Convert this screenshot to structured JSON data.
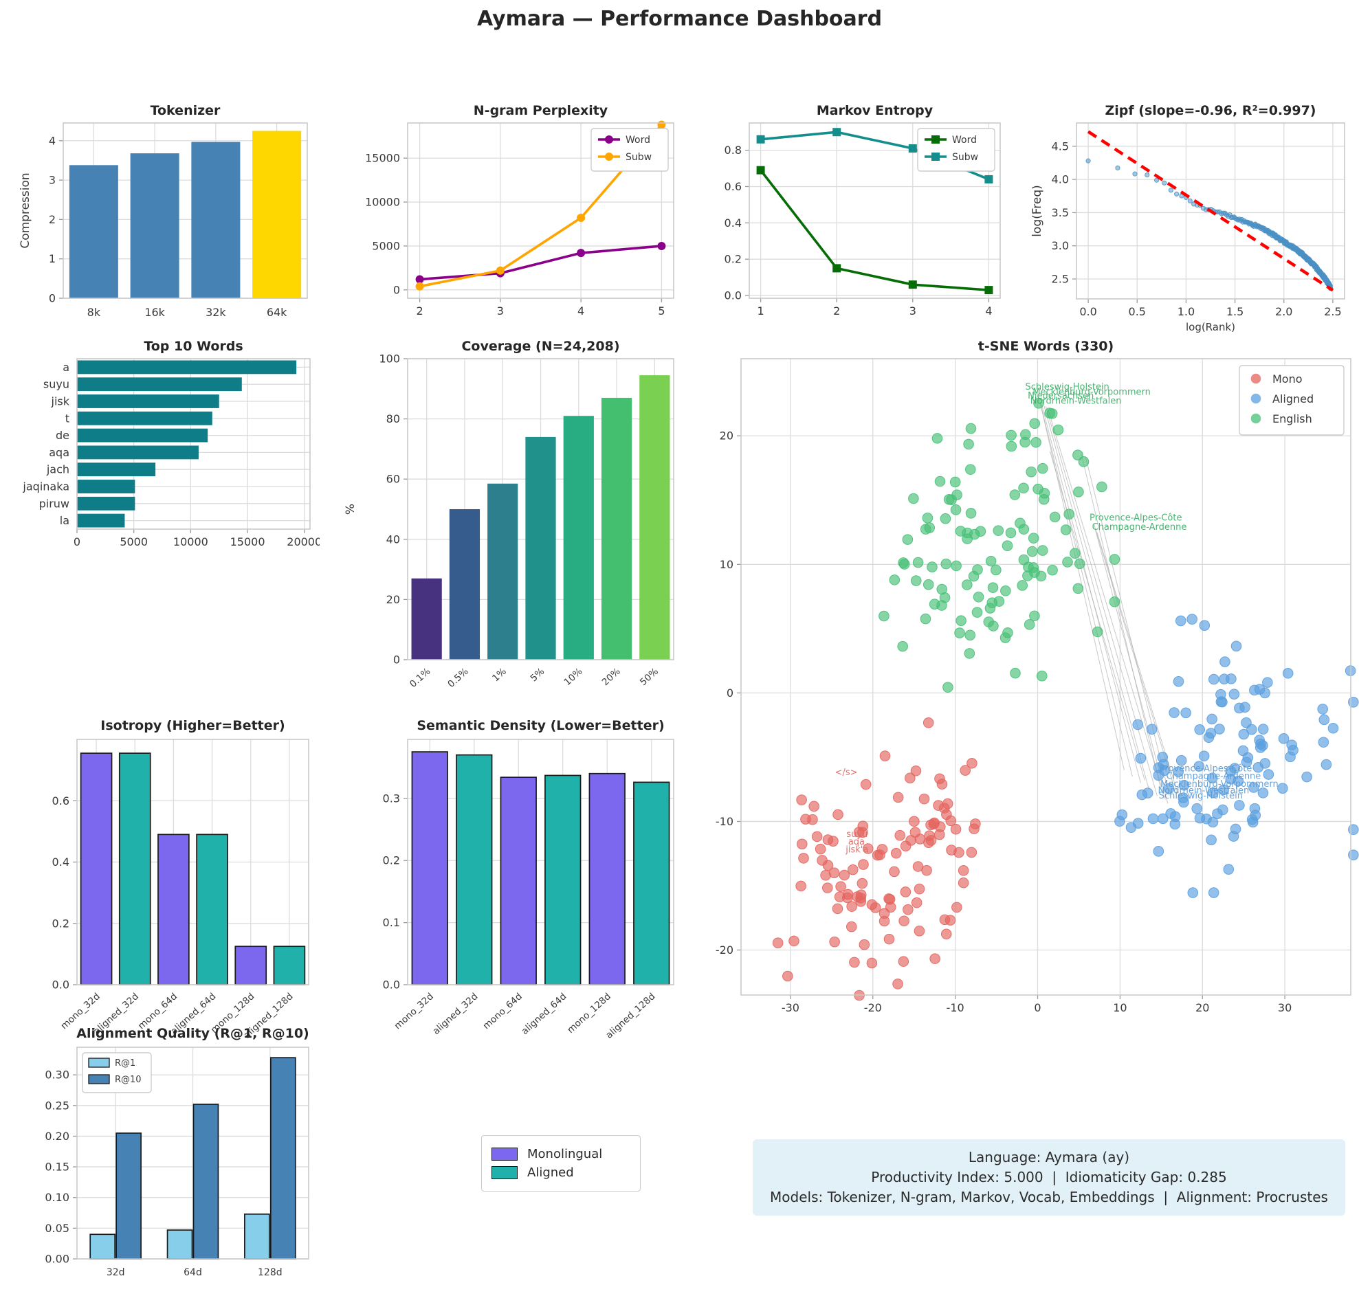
{
  "page_title": "Aymara — Performance Dashboard",
  "info_box": {
    "line1": "Language: Aymara (ay)",
    "line2": "Productivity Index: 5.000  |  Idiomaticity Gap: 0.285",
    "line3": "Models: Tokenizer, N-gram, Markov, Vocab, Embeddings  |  Alignment: Procrustes"
  },
  "shared_legend": {
    "items": [
      {
        "label": "Monolingual",
        "color": "#7B68EE"
      },
      {
        "label": "Aligned",
        "color": "#20B2AA"
      }
    ]
  },
  "chart_data": [
    {
      "id": "tokenizer",
      "type": "bar",
      "title": "Tokenizer",
      "ylabel": "Compression",
      "categories": [
        "8k",
        "16k",
        "32k",
        "64k"
      ],
      "values": [
        3.38,
        3.68,
        3.97,
        4.25
      ],
      "bar_colors": [
        "#4682B4",
        "#4682B4",
        "#4682B4",
        "#FFD700"
      ],
      "ylim": [
        0,
        4.45
      ],
      "yticks": [
        0,
        1,
        2,
        3,
        4
      ],
      "ydec": 0
    },
    {
      "id": "ngram",
      "type": "line",
      "title": "N-gram Perplexity",
      "x": [
        2,
        3,
        4,
        5
      ],
      "xticks": [
        2,
        3,
        4,
        5
      ],
      "xlim": [
        1.85,
        5.15
      ],
      "ylim": [
        -950,
        19000
      ],
      "yticks": [
        0,
        5000,
        10000,
        15000
      ],
      "ydec": 0,
      "series": [
        {
          "name": "Word",
          "color": "#8B008B",
          "marker": "circle",
          "values": [
            1200,
            1900,
            4200,
            5000
          ]
        },
        {
          "name": "Subw",
          "color": "#FFA500",
          "marker": "circle",
          "values": [
            400,
            2200,
            8200,
            18800
          ]
        }
      ],
      "legend_pos": "top-right"
    },
    {
      "id": "markov",
      "type": "line",
      "title": "Markov Entropy",
      "x": [
        1,
        2,
        3,
        4
      ],
      "xticks": [
        1,
        2,
        3,
        4
      ],
      "xlim": [
        0.85,
        4.15
      ],
      "ylim": [
        -0.015,
        0.95
      ],
      "yticks": [
        0.0,
        0.2,
        0.4,
        0.6,
        0.8
      ],
      "ydec": 1,
      "series": [
        {
          "name": "Word",
          "color": "#066d06",
          "marker": "square",
          "values": [
            0.69,
            0.15,
            0.06,
            0.03
          ]
        },
        {
          "name": "Subw",
          "color": "#148d8d",
          "marker": "square",
          "values": [
            0.86,
            0.9,
            0.81,
            0.64
          ]
        }
      ],
      "legend_pos": "top-right"
    },
    {
      "id": "zipf",
      "type": "zipf",
      "title": "Zipf (slope=-0.96, R²=0.997)",
      "xlabel": "log(Rank)",
      "ylabel": "log(Freq)",
      "xlim": [
        -0.12,
        2.62
      ],
      "ylim": [
        2.2,
        4.85
      ],
      "xticks": [
        0.0,
        0.5,
        1.0,
        1.5,
        2.0,
        2.5
      ],
      "yticks": [
        2.5,
        3.0,
        3.5,
        4.0,
        4.5
      ],
      "slope": -0.96,
      "r_squared": 0.997,
      "n_points": 300,
      "fit_line": {
        "x0": 0.0,
        "y0": 4.72,
        "x1": 2.5,
        "y1": 2.33,
        "color": "#ff0000"
      },
      "point_color": "#4a90c4",
      "anchors": [
        [
          0,
          4.29
        ],
        [
          0.3,
          4.16
        ],
        [
          0.48,
          4.08
        ],
        [
          0.6,
          4.06
        ],
        [
          0.7,
          4.01
        ],
        [
          0.78,
          3.93
        ],
        [
          0.9,
          3.8
        ],
        [
          1.0,
          3.72
        ],
        [
          1.1,
          3.63
        ],
        [
          1.2,
          3.56
        ],
        [
          1.3,
          3.52
        ],
        [
          1.4,
          3.47
        ],
        [
          1.5,
          3.42
        ],
        [
          1.6,
          3.36
        ],
        [
          1.7,
          3.31
        ],
        [
          1.8,
          3.25
        ],
        [
          1.9,
          3.16
        ],
        [
          2.0,
          3.06
        ],
        [
          2.1,
          2.97
        ],
        [
          2.2,
          2.86
        ],
        [
          2.3,
          2.72
        ],
        [
          2.4,
          2.55
        ],
        [
          2.45,
          2.44
        ],
        [
          2.5,
          2.32
        ]
      ]
    },
    {
      "id": "topwords",
      "type": "barh",
      "title": "Top 10 Words",
      "categories": [
        "a",
        "suyu",
        "jisk",
        "t",
        "de",
        "aqa",
        "jach",
        "jaqinaka",
        "piruw",
        "la"
      ],
      "values": [
        19300,
        14500,
        12500,
        11900,
        11500,
        10700,
        6900,
        5100,
        5100,
        4200
      ],
      "color": "#0e7d87",
      "xlim": [
        0,
        20500
      ],
      "xticks": [
        0,
        5000,
        10000,
        15000,
        20000
      ],
      "xdec": 0
    },
    {
      "id": "coverage",
      "type": "bar",
      "title": "Coverage (N=24,208)",
      "ylabel": "%",
      "categories": [
        "0.1%",
        "0.5%",
        "1%",
        "5%",
        "10%",
        "20%",
        "50%"
      ],
      "values": [
        27,
        50,
        58.5,
        74,
        81,
        87,
        94.5
      ],
      "bar_colors": [
        "#46327e",
        "#365c8d",
        "#2d7f8e",
        "#21918c",
        "#27ad81",
        "#44bf70",
        "#7ad151"
      ],
      "ylim": [
        0,
        100
      ],
      "yticks": [
        0,
        20,
        40,
        60,
        80,
        100
      ],
      "ydec": 0,
      "rotate": true
    },
    {
      "id": "tsne",
      "type": "tsne",
      "title": "t-SNE Words (330)",
      "xlim": [
        -36,
        38
      ],
      "ylim": [
        -23.5,
        26
      ],
      "xticks": [
        -30,
        -20,
        -10,
        0,
        10,
        20,
        30
      ],
      "yticks": [
        -20,
        -10,
        0,
        10,
        20
      ],
      "legend": [
        {
          "label": "Mono",
          "color": "#e4645e"
        },
        {
          "label": "Aligned",
          "color": "#5a9fdf"
        },
        {
          "label": "English",
          "color": "#47c077"
        }
      ],
      "clusters": [
        {
          "name": "Mono",
          "color": "#e4645e",
          "seed": 7,
          "blobs": [
            {
              "n": 78,
              "cx": -21,
              "cy": -14.5,
              "sx": 5.0,
              "sy": 4.0
            },
            {
              "n": 32,
              "cx": -11,
              "cy": -10,
              "sx": 2.6,
              "sy": 3.2
            }
          ]
        },
        {
          "name": "Aligned",
          "color": "#5a9fdf",
          "seed": 13,
          "blobs": [
            {
              "n": 95,
              "cx": 22,
              "cy": -4.5,
              "sx": 6.8,
              "sy": 4.6
            },
            {
              "n": 15,
              "cx": 14,
              "cy": -7.5,
              "sx": 2.2,
              "sy": 1.6
            }
          ]
        },
        {
          "name": "English",
          "color": "#47c077",
          "seed": 42,
          "blobs": [
            {
              "n": 100,
              "cx": -6.5,
              "cy": 11,
              "sx": 6.6,
              "sy": 4.4
            },
            {
              "n": 10,
              "cx": 1,
              "cy": 19.5,
              "sx": 3.4,
              "sy": 2.0
            }
          ]
        }
      ],
      "annotations": [
        {
          "text": "Schleswig-Holstein",
          "x": -1.5,
          "y": 23.6,
          "color": "green"
        },
        {
          "text": "Mecklenburg-Vorpommern",
          "x": -0.6,
          "y": 23.2,
          "color": "green"
        },
        {
          "text": "Niedersachsen",
          "x": -1.2,
          "y": 22.9,
          "color": "green"
        },
        {
          "text": "Nordrhein-Westfalen",
          "x": -0.9,
          "y": 22.5,
          "color": "green"
        },
        {
          "text": "Provence-Alpes-Côte",
          "x": 6.3,
          "y": 13.4,
          "color": "green"
        },
        {
          "text": "Champagne-Ardenne",
          "x": 6.6,
          "y": 12.7,
          "color": "green"
        },
        {
          "text": "Provence-Alpes-Côte",
          "x": 14.8,
          "y": -6.1,
          "color": "blue"
        },
        {
          "text": "Champagne-Ardenne",
          "x": 15.6,
          "y": -6.7,
          "color": "blue"
        },
        {
          "text": "Mecklenburg-Vorpommern",
          "x": 14.9,
          "y": -7.3,
          "color": "blue"
        },
        {
          "text": "Nordrhein-Westfalen",
          "x": 14.6,
          "y": -7.8,
          "color": "blue"
        },
        {
          "text": "Schleswig-Holstein",
          "x": 14.7,
          "y": -8.2,
          "color": "blue"
        },
        {
          "text": "</s>",
          "x": -24.6,
          "y": -6.4,
          "color": "red"
        },
        {
          "text": "suyu",
          "x": -23.2,
          "y": -11.2,
          "color": "red"
        },
        {
          "text": "aqa",
          "x": -23.0,
          "y": -11.8,
          "color": "red"
        },
        {
          "text": "jisk'a",
          "x": -23.3,
          "y": -12.4,
          "color": "red"
        }
      ],
      "connections": [
        [
          0.3,
          22.6,
          10.5,
          -6.0
        ],
        [
          0.3,
          22.6,
          11.5,
          -6.5
        ],
        [
          0.5,
          22.4,
          12.5,
          -7.0
        ],
        [
          0.8,
          22.3,
          13.5,
          -7.5
        ],
        [
          1.0,
          22.3,
          14.5,
          -8.0
        ],
        [
          1.2,
          22.2,
          15.5,
          -8.3
        ],
        [
          1.5,
          18.8,
          13.0,
          -6.8
        ],
        [
          5.3,
          18.6,
          15.0,
          -7.6
        ],
        [
          5.8,
          18.4,
          16.0,
          -8.0
        ],
        [
          6.8,
          13.2,
          16.5,
          -7.2
        ],
        [
          7.0,
          12.7,
          15.8,
          -8.6
        ],
        [
          7.2,
          12.5,
          17.0,
          -7.8
        ]
      ]
    },
    {
      "id": "isotropy",
      "type": "bar",
      "title": "Isotropy (Higher=Better)",
      "categories": [
        "mono_32d",
        "aligned_32d",
        "mono_64d",
        "aligned_64d",
        "mono_128d",
        "aligned_128d"
      ],
      "values": [
        0.755,
        0.755,
        0.49,
        0.49,
        0.125,
        0.125
      ],
      "bar_colors": [
        "#7B68EE",
        "#20B2AA",
        "#7B68EE",
        "#20B2AA",
        "#7B68EE",
        "#20B2AA"
      ],
      "edge": "#1a1a1a",
      "ylim": [
        0,
        0.8
      ],
      "yticks": [
        0.0,
        0.2,
        0.4,
        0.6
      ],
      "ydec": 1,
      "rotate": true
    },
    {
      "id": "semdens",
      "type": "bar",
      "title": "Semantic Density (Lower=Better)",
      "categories": [
        "mono_32d",
        "aligned_32d",
        "mono_64d",
        "aligned_64d",
        "mono_128d",
        "aligned_128d"
      ],
      "values": [
        0.375,
        0.37,
        0.334,
        0.337,
        0.34,
        0.326
      ],
      "bar_colors": [
        "#7B68EE",
        "#20B2AA",
        "#7B68EE",
        "#20B2AA",
        "#7B68EE",
        "#20B2AA"
      ],
      "edge": "#1a1a1a",
      "ylim": [
        0,
        0.395
      ],
      "yticks": [
        0.0,
        0.1,
        0.2,
        0.3
      ],
      "ydec": 1,
      "rotate": true
    },
    {
      "id": "alignq",
      "type": "grouped",
      "title": "Alignment Quality (R@1, R@10)",
      "categories": [
        "32d",
        "64d",
        "128d"
      ],
      "series": [
        {
          "name": "R@1",
          "color": "#87CEEB",
          "values": [
            0.04,
            0.047,
            0.073
          ]
        },
        {
          "name": "R@10",
          "color": "#4682B4",
          "values": [
            0.205,
            0.252,
            0.328
          ]
        }
      ],
      "edge": "#1a1a1a",
      "ylim": [
        0,
        0.345
      ],
      "yticks": [
        0.0,
        0.05,
        0.1,
        0.15,
        0.2,
        0.25,
        0.3
      ],
      "ydec": 2,
      "legend_pos": "top-left"
    }
  ]
}
